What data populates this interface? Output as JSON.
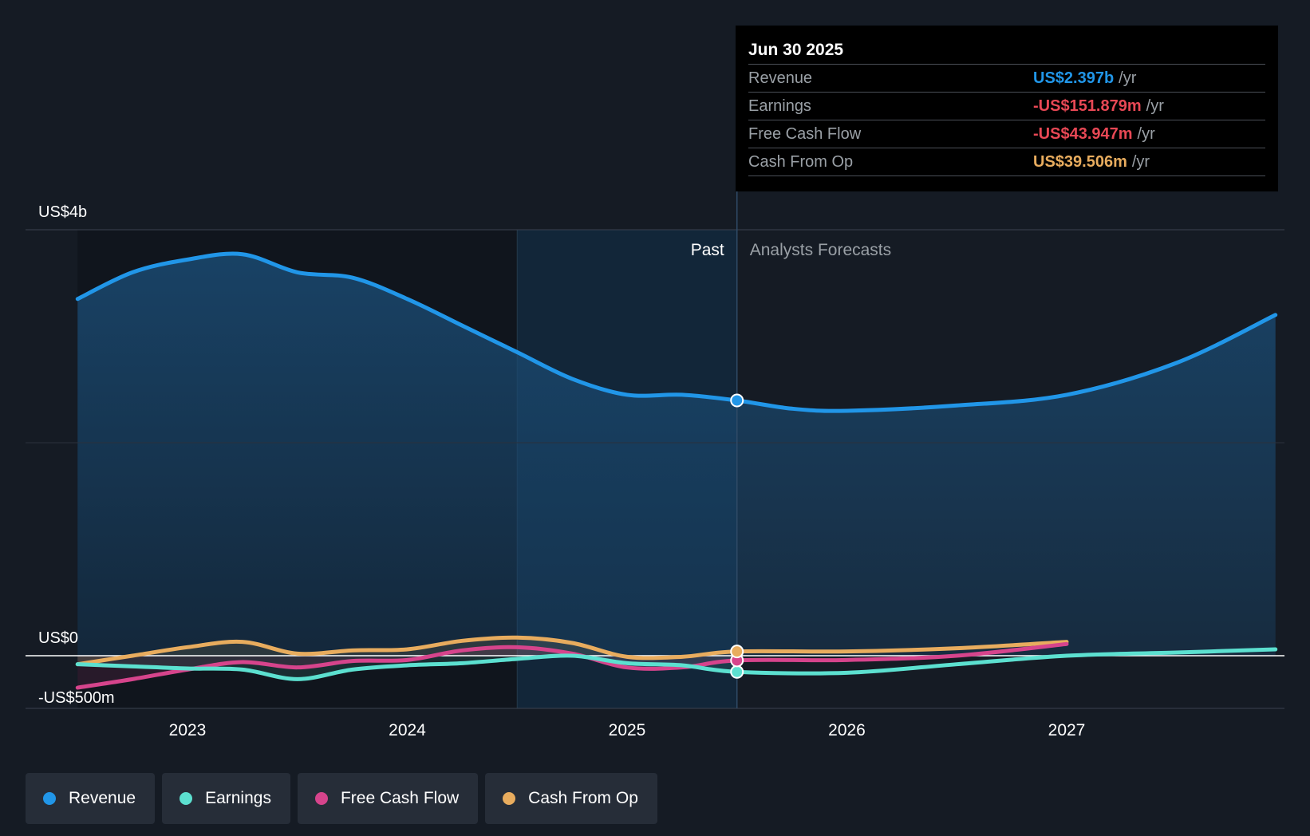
{
  "chart_data": {
    "type": "area",
    "y_axis_labels": [
      "US$4b",
      "US$0",
      "-US$500m"
    ],
    "x_ticks": [
      "2023",
      "2024",
      "2025",
      "2026",
      "2027"
    ],
    "ylim": [
      -500,
      4000
    ],
    "xlim": [
      2022.5,
      2027.95
    ],
    "past_label": "Past",
    "forecast_label": "Analysts Forecasts",
    "divider_x": 2025.5,
    "series": [
      {
        "name": "Revenue",
        "color": "#2196e8",
        "points": [
          [
            2022.5,
            3350
          ],
          [
            2022.75,
            3600
          ],
          [
            2023,
            3720
          ],
          [
            2023.25,
            3770
          ],
          [
            2023.5,
            3600
          ],
          [
            2023.75,
            3550
          ],
          [
            2024,
            3350
          ],
          [
            2024.25,
            3100
          ],
          [
            2024.5,
            2850
          ],
          [
            2024.75,
            2600
          ],
          [
            2025,
            2450
          ],
          [
            2025.25,
            2450
          ],
          [
            2025.5,
            2397
          ],
          [
            2025.75,
            2320
          ],
          [
            2026,
            2300
          ],
          [
            2026.5,
            2350
          ],
          [
            2027,
            2450
          ],
          [
            2027.5,
            2750
          ],
          [
            2027.95,
            3200
          ]
        ]
      },
      {
        "name": "Earnings",
        "color": "#5ce0d0",
        "points": [
          [
            2022.5,
            -80
          ],
          [
            2022.75,
            -100
          ],
          [
            2023,
            -120
          ],
          [
            2023.25,
            -130
          ],
          [
            2023.5,
            -220
          ],
          [
            2023.75,
            -130
          ],
          [
            2024,
            -90
          ],
          [
            2024.25,
            -70
          ],
          [
            2024.5,
            -30
          ],
          [
            2024.75,
            0
          ],
          [
            2025,
            -70
          ],
          [
            2025.25,
            -90
          ],
          [
            2025.5,
            -152
          ],
          [
            2026,
            -160
          ],
          [
            2026.5,
            -80
          ],
          [
            2027,
            0
          ],
          [
            2027.5,
            30
          ],
          [
            2027.95,
            60
          ]
        ]
      },
      {
        "name": "Free Cash Flow",
        "color": "#d6448c",
        "points": [
          [
            2022.5,
            -300
          ],
          [
            2022.75,
            -220
          ],
          [
            2023,
            -130
          ],
          [
            2023.25,
            -60
          ],
          [
            2023.5,
            -110
          ],
          [
            2023.75,
            -50
          ],
          [
            2024,
            -40
          ],
          [
            2024.25,
            50
          ],
          [
            2024.5,
            80
          ],
          [
            2024.75,
            20
          ],
          [
            2025,
            -110
          ],
          [
            2025.25,
            -110
          ],
          [
            2025.5,
            -44
          ],
          [
            2026,
            -40
          ],
          [
            2026.5,
            0
          ],
          [
            2027,
            110
          ]
        ]
      },
      {
        "name": "Cash From Op",
        "color": "#e8ac5e",
        "points": [
          [
            2022.5,
            -80
          ],
          [
            2022.75,
            0
          ],
          [
            2023,
            80
          ],
          [
            2023.25,
            130
          ],
          [
            2023.5,
            20
          ],
          [
            2023.75,
            50
          ],
          [
            2024,
            60
          ],
          [
            2024.25,
            140
          ],
          [
            2024.5,
            170
          ],
          [
            2024.75,
            120
          ],
          [
            2025,
            -10
          ],
          [
            2025.25,
            -10
          ],
          [
            2025.5,
            40
          ],
          [
            2026,
            40
          ],
          [
            2026.5,
            70
          ],
          [
            2027,
            130
          ]
        ]
      }
    ]
  },
  "tooltip": {
    "date": "Jun 30 2025",
    "rows": [
      {
        "label": "Revenue",
        "value": "US$2.397b",
        "unit": "/yr",
        "color": "#2196e8"
      },
      {
        "label": "Earnings",
        "value": "-US$151.879m",
        "unit": "/yr",
        "color": "#e84855"
      },
      {
        "label": "Free Cash Flow",
        "value": "-US$43.947m",
        "unit": "/yr",
        "color": "#e84855"
      },
      {
        "label": "Cash From Op",
        "value": "US$39.506m",
        "unit": "/yr",
        "color": "#e8ac5e"
      }
    ]
  },
  "legend": [
    {
      "label": "Revenue",
      "color": "#2196e8"
    },
    {
      "label": "Earnings",
      "color": "#5ce0d0"
    },
    {
      "label": "Free Cash Flow",
      "color": "#d6448c"
    },
    {
      "label": "Cash From Op",
      "color": "#e8ac5e"
    }
  ]
}
